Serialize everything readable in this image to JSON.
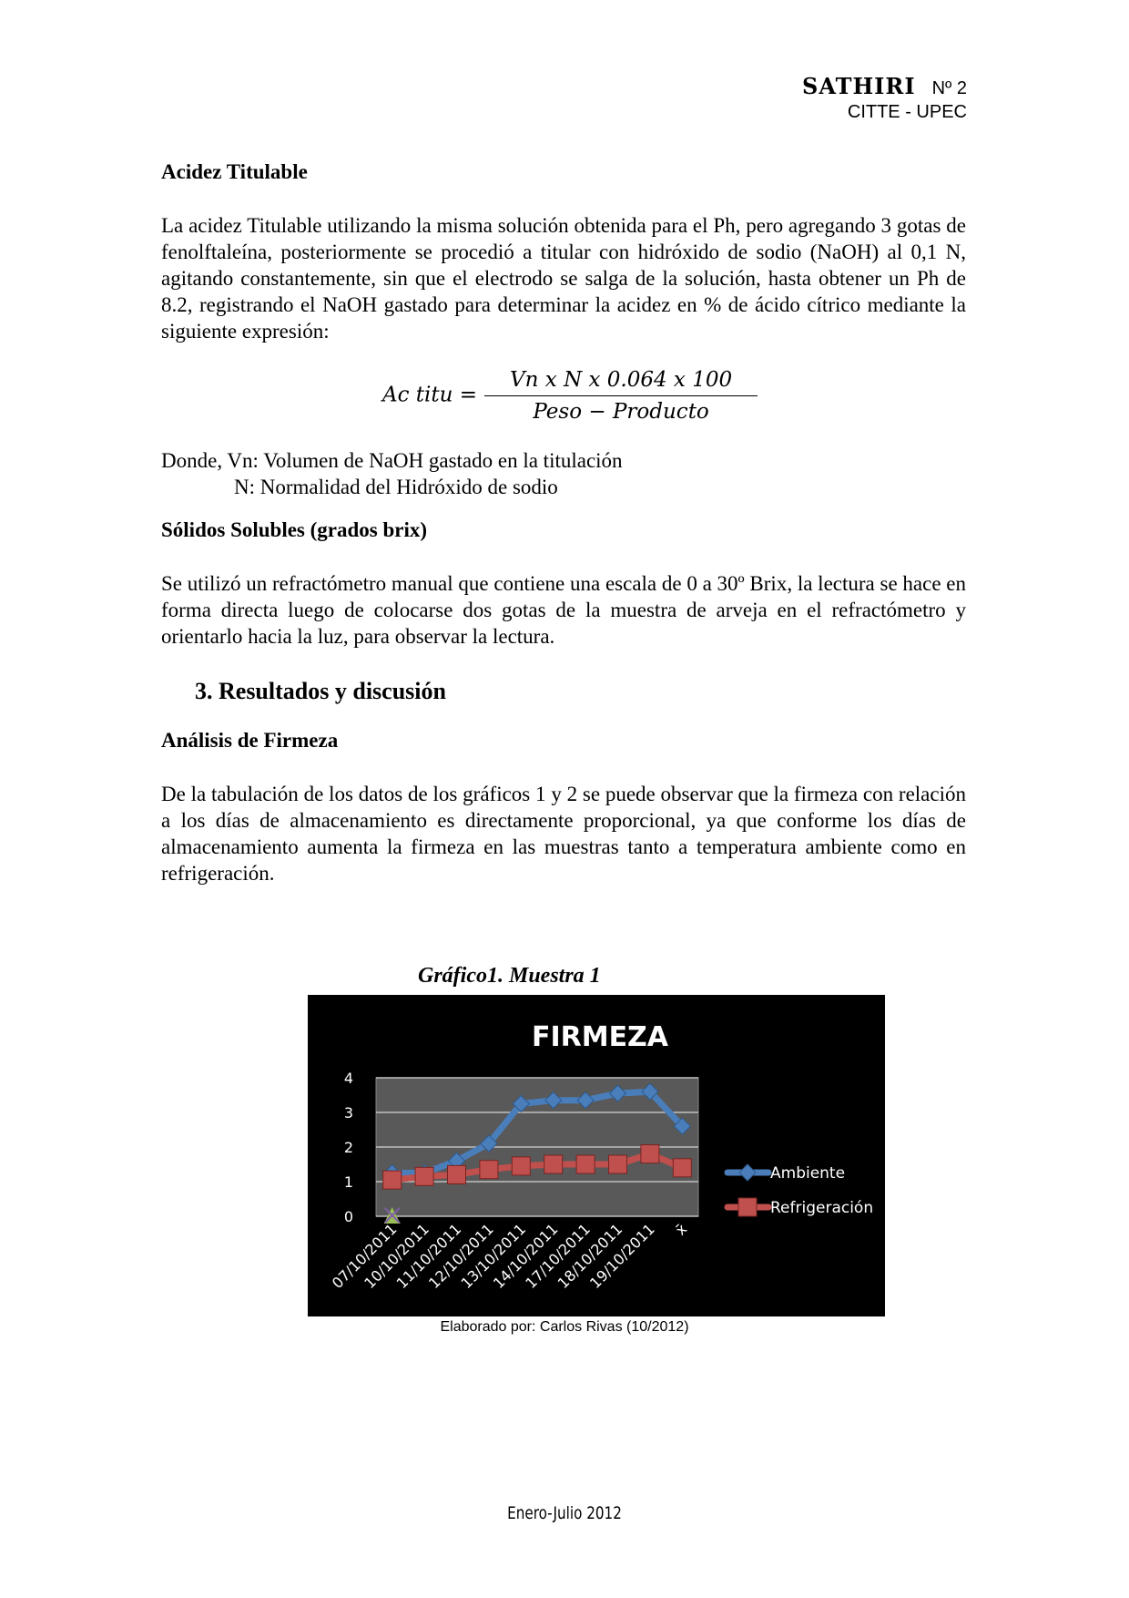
{
  "header": {
    "brand": "SATHIRI",
    "issue": "Nº 2",
    "institution": "CITTE - UPEC"
  },
  "section_acidez": {
    "title": "Acidez Titulable",
    "paragraph": "La acidez Titulable utilizando la misma solución obtenida para el Ph, pero agregando 3 gotas de fenolftaleína, posteriormente se procedió a titular con hidróxido de sodio (NaOH) al 0,1 N, agitando constantemente, sin que el electrodo se salga de la solución, hasta obtener un Ph de 8.2, registrando el NaOH gastado para determinar la acidez en % de ácido cítrico mediante la siguiente expresión:",
    "formula": {
      "lhs": "Ac titu =",
      "numerator": "Vn x N x 0.064 x 100",
      "denominator": "Peso − Producto"
    },
    "where_line1": "Donde, Vn: Volumen de NaOH gastado en la titulación",
    "where_line2": "N: Normalidad del Hidróxido de sodio"
  },
  "section_solidos": {
    "title": "Sólidos Solubles (grados brix)",
    "paragraph": "Se utilizó un refractómetro manual que contiene una escala de 0 a 30º Brix, la lectura se hace en forma directa luego de colocarse dos gotas de la muestra de arveja en el refractómetro y orientarlo hacia la luz, para observar la lectura."
  },
  "section_resultados": {
    "title": "3.  Resultados y discusión",
    "subtitle": "Análisis de Firmeza",
    "paragraph": "De la tabulación de los datos de los gráficos  1 y 2 se puede observar que la firmeza con relación a los días de almacenamiento es directamente proporcional, ya que conforme los días de almacenamiento aumenta la firmeza en las muestras tanto a temperatura ambiente como en refrigeración."
  },
  "figure": {
    "caption": "Gráfico1.  Muestra 1",
    "source": "Elaborado por: Carlos Rivas (10/2012)"
  },
  "chart_data": {
    "type": "line",
    "title": "FIRMEZA",
    "categories": [
      "07/10/2011",
      "10/10/2011",
      "11/10/2011",
      "12/10/2011",
      "13/10/2011",
      "14/10/2011",
      "17/10/2011",
      "18/10/2011",
      "19/10/2011",
      "x̄"
    ],
    "ylim": [
      0,
      4
    ],
    "yticks": [
      "0",
      "1",
      "2",
      "3",
      "4"
    ],
    "grid": true,
    "legend_position": "right",
    "background": "#000000",
    "plot_background": "#595959",
    "series": [
      {
        "name": "Ambiente",
        "color": "#4a7ebb",
        "marker": "diamond",
        "values": [
          1.25,
          1.25,
          1.6,
          2.1,
          3.25,
          3.35,
          3.35,
          3.55,
          3.6,
          2.6
        ]
      },
      {
        "name": "Refrigeración",
        "color": "#c0504d",
        "marker": "square",
        "values": [
          1.05,
          1.15,
          1.2,
          1.35,
          1.45,
          1.5,
          1.5,
          1.5,
          1.8,
          1.4
        ]
      },
      {
        "color": "#9bbb59",
        "marker": "triangle-x",
        "values": [
          0,
          null,
          null,
          null,
          null,
          null,
          null,
          null,
          null,
          null
        ]
      }
    ]
  },
  "footer": {
    "text": "Enero-Julio 2012"
  }
}
